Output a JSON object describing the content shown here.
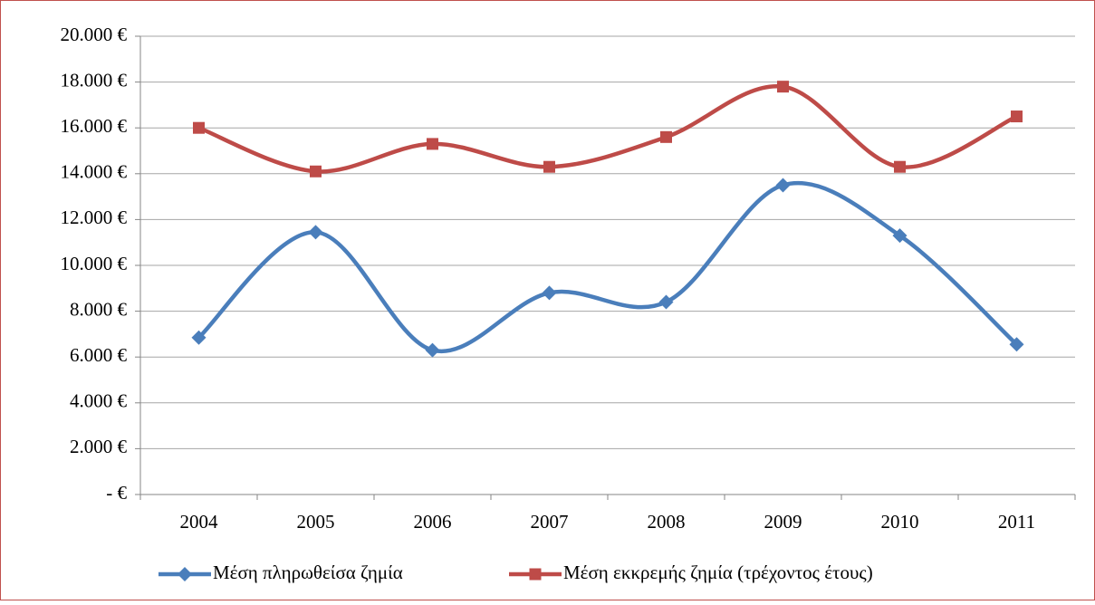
{
  "chart_data": {
    "type": "line",
    "categories": [
      "2004",
      "2005",
      "2006",
      "2007",
      "2008",
      "2009",
      "2010",
      "2011"
    ],
    "series": [
      {
        "name": "Μέση πληρωθείσα ζημία",
        "color": "#4a7ebb",
        "marker": "diamond",
        "values": [
          6850,
          11450,
          6300,
          8800,
          8400,
          13500,
          11300,
          6550
        ]
      },
      {
        "name": "Μέση εκκρεμής ζημία (τρέχοντος έτους)",
        "color": "#be4b48",
        "marker": "square",
        "values": [
          16000,
          14100,
          15300,
          14300,
          15600,
          17800,
          14300,
          16500
        ]
      }
    ],
    "ylim": [
      0,
      20000
    ],
    "yticks": [
      {
        "value": 0,
        "label": "- €"
      },
      {
        "value": 2000,
        "label": "2.000 €"
      },
      {
        "value": 4000,
        "label": "4.000 €"
      },
      {
        "value": 6000,
        "label": "6.000 €"
      },
      {
        "value": 8000,
        "label": "8.000 €"
      },
      {
        "value": 10000,
        "label": "10.000 €"
      },
      {
        "value": 12000,
        "label": "12.000 €"
      },
      {
        "value": 14000,
        "label": "14.000 €"
      },
      {
        "value": 16000,
        "label": "16.000 €"
      },
      {
        "value": 18000,
        "label": "18.000 €"
      },
      {
        "value": 20000,
        "label": "20.000 €"
      }
    ],
    "grid": true,
    "smooth": true,
    "legend": "bottom"
  }
}
